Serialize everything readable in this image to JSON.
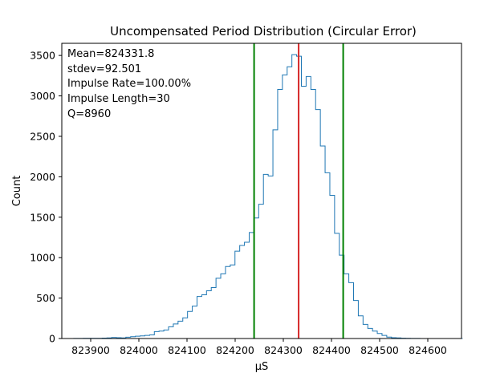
{
  "chart_data": {
    "type": "histogram-step",
    "title": "Uncompensated Period Distribution (Circular Error)",
    "xlabel": "µS",
    "ylabel": "Count",
    "xlim": [
      823840,
      824670
    ],
    "ylim": [
      0,
      3650
    ],
    "xticks": [
      823900,
      824000,
      824100,
      824200,
      824300,
      824400,
      824500,
      824600
    ],
    "yticks": [
      0,
      500,
      1000,
      1500,
      2000,
      2500,
      3000,
      3500
    ],
    "grid": false,
    "annotations": [
      "Mean=824331.8",
      "stdev=92.501",
      "Impulse Rate=100.00%",
      "Impulse Length=30",
      "Q=8960"
    ],
    "vlines": [
      {
        "x": 824331.8,
        "color": "#d62728"
      },
      {
        "x": 824239.3,
        "color": "#008000"
      },
      {
        "x": 824424.3,
        "color": "#008000"
      }
    ],
    "series": [
      {
        "color": "#1f77b4",
        "bin_width": 9.85,
        "x_start": 823845,
        "counts": [
          0,
          0,
          1,
          1,
          2,
          2,
          3,
          3,
          5,
          8,
          12,
          10,
          8,
          16,
          22,
          28,
          32,
          38,
          45,
          85,
          92,
          105,
          145,
          180,
          215,
          255,
          335,
          400,
          520,
          540,
          590,
          630,
          745,
          800,
          890,
          910,
          1080,
          1150,
          1190,
          1310,
          1490,
          1660,
          2030,
          2010,
          2580,
          3080,
          3260,
          3360,
          3510,
          3490,
          3120,
          3240,
          3080,
          2830,
          2380,
          2050,
          1770,
          1300,
          1030,
          800,
          690,
          470,
          280,
          175,
          125,
          92,
          62,
          38,
          17,
          10,
          7,
          4,
          2,
          1,
          1,
          0,
          0,
          0,
          0,
          0,
          0,
          0,
          0,
          0
        ]
      }
    ]
  }
}
